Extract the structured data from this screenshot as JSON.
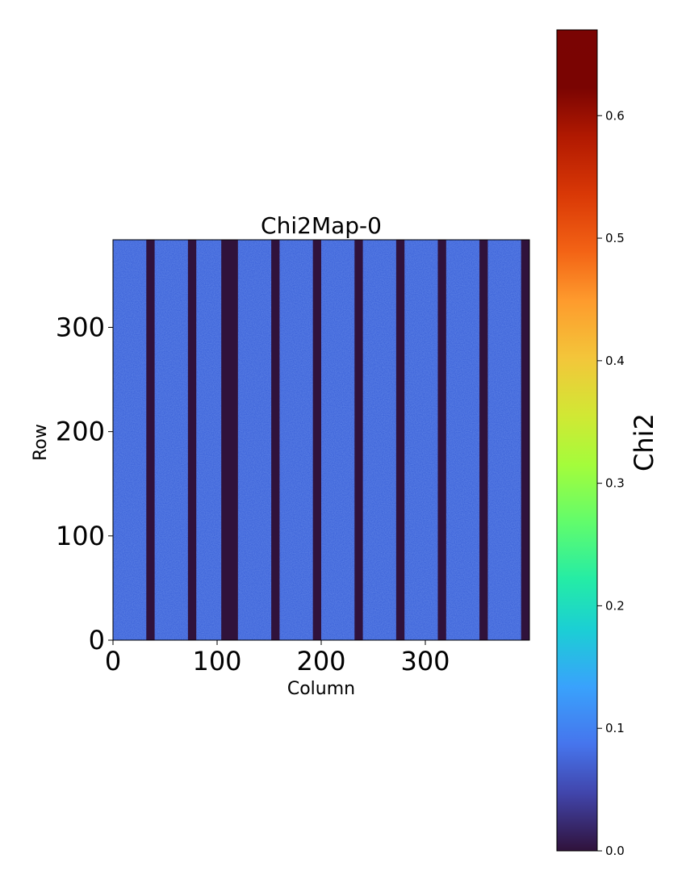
{
  "chart_data": {
    "type": "heatmap",
    "title": "Chi2Map-0",
    "xlabel": "Column",
    "ylabel": "Row",
    "xlim": [
      0,
      400
    ],
    "ylim": [
      0,
      384
    ],
    "x_ticks": [
      0,
      100,
      200,
      300
    ],
    "y_ticks": [
      0,
      100,
      200,
      300
    ],
    "typical_value": 0.07,
    "gap_value": 0.0,
    "gap_columns": [
      {
        "start": 32,
        "end": 40
      },
      {
        "start": 72,
        "end": 80
      },
      {
        "start": 104,
        "end": 120
      },
      {
        "start": 152,
        "end": 160
      },
      {
        "start": 192,
        "end": 200
      },
      {
        "start": 232,
        "end": 240
      },
      {
        "start": 272,
        "end": 280
      },
      {
        "start": 312,
        "end": 320
      },
      {
        "start": 352,
        "end": 360
      },
      {
        "start": 392,
        "end": 400
      }
    ],
    "colorbar": {
      "label": "Chi2",
      "colormap": "turbo",
      "min": 0.0,
      "max": 0.67,
      "ticks": [
        0.0,
        0.1,
        0.2,
        0.3,
        0.4,
        0.5,
        0.6
      ],
      "tick_labels": [
        "0.0",
        "0.1",
        "0.2",
        "0.3",
        "0.4",
        "0.5",
        "0.6"
      ]
    }
  }
}
